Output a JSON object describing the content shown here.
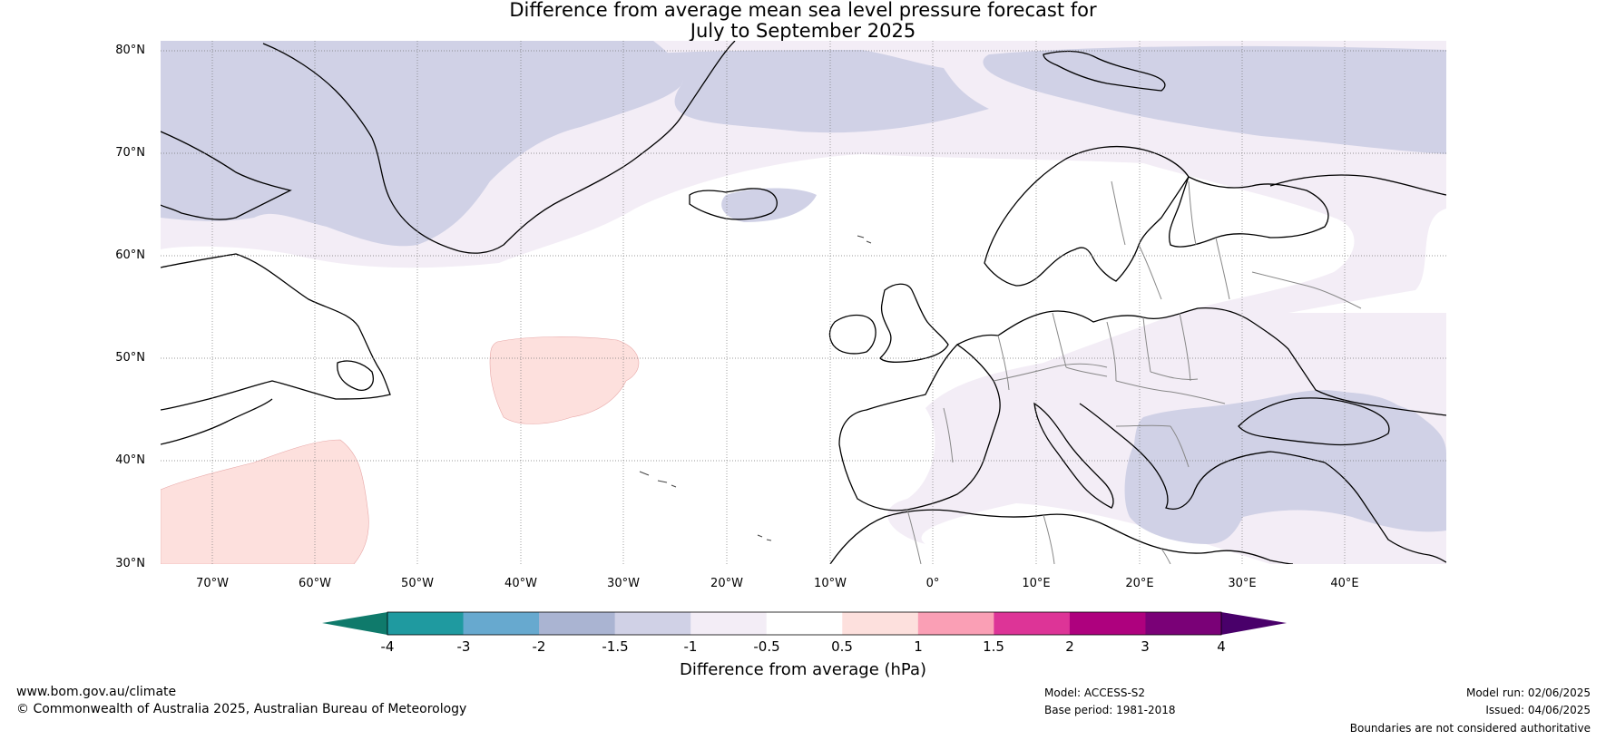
{
  "title": {
    "line1": "Difference from average mean sea level pressure forecast for",
    "line2": "July to September 2025"
  },
  "map": {
    "lat_labels": [
      "80°N",
      "70°N",
      "60°N",
      "50°N",
      "40°N",
      "30°N"
    ],
    "lon_labels": [
      "70°W",
      "60°W",
      "50°W",
      "40°W",
      "30°W",
      "20°W",
      "10°W",
      "0°",
      "10°E",
      "20°E",
      "30°E",
      "40°E"
    ],
    "extent": {
      "lon": [
        -75,
        50
      ],
      "lat": [
        30,
        81
      ]
    }
  },
  "legend": {
    "label": "Difference from average (hPa)",
    "ticks": [
      "-4",
      "-3",
      "-2",
      "-1.5",
      "-1",
      "-0.5",
      "0.5",
      "1",
      "1.5",
      "2",
      "3",
      "4"
    ],
    "colors": [
      "#0f7a6b",
      "#1f9aa0",
      "#67a9cf",
      "#aab4d2",
      "#d0d1e6",
      "#f3edf6",
      "#ffffff",
      "#fde0dd",
      "#fa9fb5",
      "#dd3497",
      "#ae017e",
      "#7a0177",
      "#49006a"
    ]
  },
  "footer": {
    "website": "www.bom.gov.au/climate",
    "copyright": "© Commonwealth of Australia 2025, Australian Bureau of Meteorology",
    "model": "Model: ACCESS-S2",
    "base_period": "Base period: 1981-2018",
    "model_run": "Model run: 02/06/2025",
    "issued": "Issued: 04/06/2025",
    "disclaimer": "Boundaries are not considered authoritative"
  }
}
